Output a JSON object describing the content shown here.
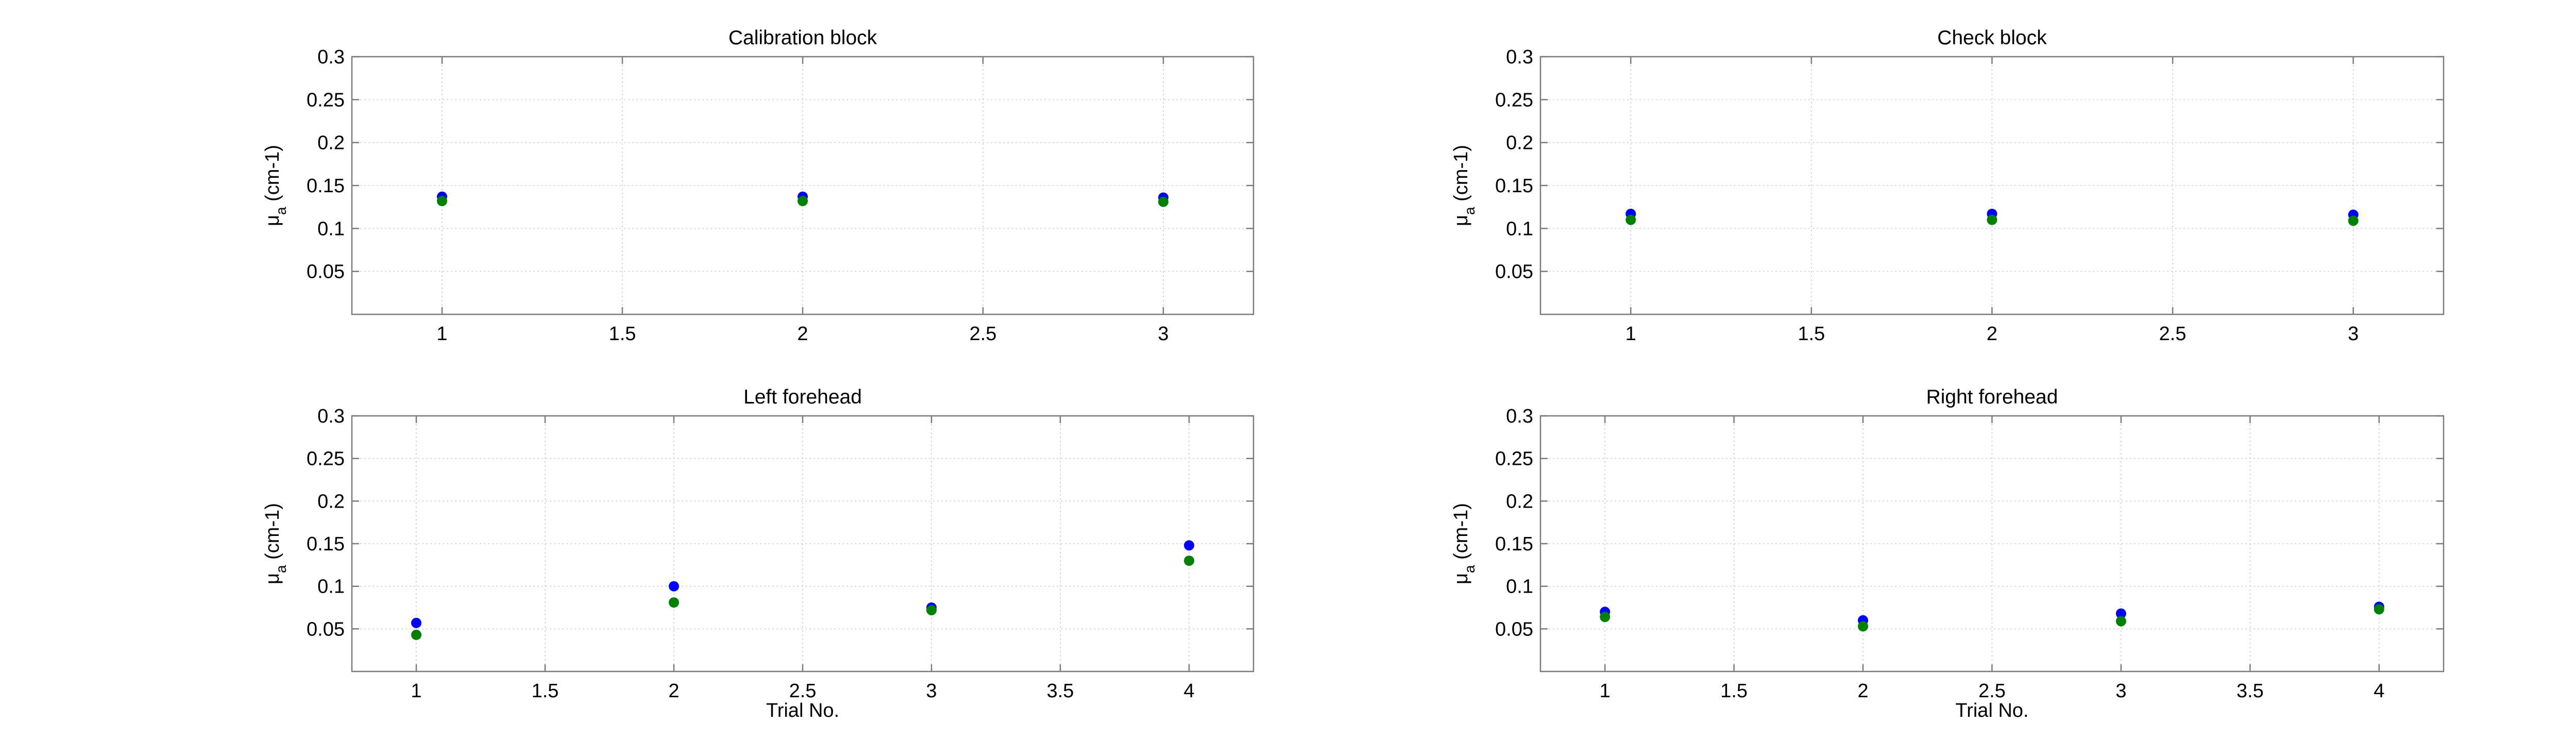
{
  "chart_data": [
    {
      "type": "scatter",
      "title": "Calibration block",
      "ylabel": "μa (cm-1)",
      "xlabel": "",
      "xlim": [
        0.75,
        3.25
      ],
      "ylim": [
        0,
        0.3
      ],
      "xticks": [
        1,
        1.5,
        2,
        2.5,
        3
      ],
      "yticks": [
        0.05,
        0.1,
        0.15,
        0.2,
        0.25,
        0.3
      ],
      "grid": true,
      "series": [
        {
          "color": "#0000ff",
          "x": [
            1,
            2,
            3
          ],
          "y": [
            0.137,
            0.137,
            0.136
          ]
        },
        {
          "color": "#008000",
          "x": [
            1,
            2,
            3
          ],
          "y": [
            0.132,
            0.132,
            0.131
          ]
        }
      ]
    },
    {
      "type": "scatter",
      "title": "Check block",
      "ylabel": "μa (cm-1)",
      "xlabel": "",
      "xlim": [
        0.75,
        3.25
      ],
      "ylim": [
        0,
        0.3
      ],
      "xticks": [
        1,
        1.5,
        2,
        2.5,
        3
      ],
      "yticks": [
        0.05,
        0.1,
        0.15,
        0.2,
        0.25,
        0.3
      ],
      "grid": true,
      "series": [
        {
          "color": "#0000ff",
          "x": [
            1,
            2,
            3
          ],
          "y": [
            0.117,
            0.117,
            0.116
          ]
        },
        {
          "color": "#008000",
          "x": [
            1,
            2,
            3
          ],
          "y": [
            0.11,
            0.11,
            0.109
          ]
        }
      ]
    },
    {
      "type": "scatter",
      "title": "Left forehead",
      "ylabel": "μa (cm-1)",
      "xlabel": "Trial No.",
      "xlim": [
        0.75,
        4.25
      ],
      "ylim": [
        0,
        0.3
      ],
      "xticks": [
        1,
        1.5,
        2,
        2.5,
        3,
        3.5,
        4
      ],
      "yticks": [
        0.05,
        0.1,
        0.15,
        0.2,
        0.25,
        0.3
      ],
      "grid": true,
      "series": [
        {
          "color": "#0000ff",
          "x": [
            1,
            2,
            3,
            4
          ],
          "y": [
            0.057,
            0.1,
            0.075,
            0.148
          ]
        },
        {
          "color": "#008000",
          "x": [
            1,
            2,
            3,
            4
          ],
          "y": [
            0.043,
            0.081,
            0.072,
            0.13
          ]
        }
      ]
    },
    {
      "type": "scatter",
      "title": "Right forehead",
      "ylabel": "μa (cm-1)",
      "xlabel": "Trial No.",
      "xlim": [
        0.75,
        4.25
      ],
      "ylim": [
        0,
        0.3
      ],
      "xticks": [
        1,
        1.5,
        2,
        2.5,
        3,
        3.5,
        4
      ],
      "yticks": [
        0.05,
        0.1,
        0.15,
        0.2,
        0.25,
        0.3
      ],
      "grid": true,
      "series": [
        {
          "color": "#0000ff",
          "x": [
            1,
            2,
            3,
            4
          ],
          "y": [
            0.07,
            0.06,
            0.068,
            0.076
          ]
        },
        {
          "color": "#008000",
          "x": [
            1,
            2,
            3,
            4
          ],
          "y": [
            0.064,
            0.053,
            0.059,
            0.073
          ]
        }
      ]
    }
  ]
}
